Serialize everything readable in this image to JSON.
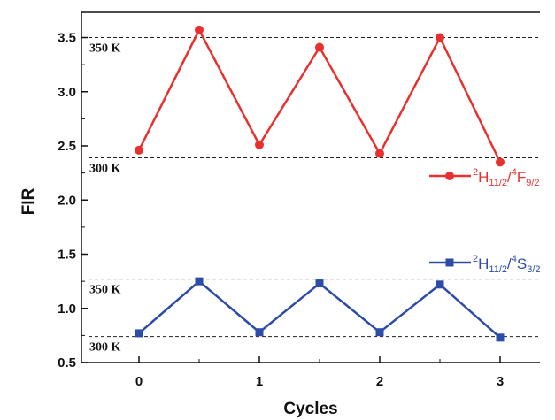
{
  "chart_data": {
    "type": "line",
    "xlabel": "Cycles",
    "ylabel": "FIR",
    "xlim": [
      -0.38,
      3.45
    ],
    "ylim": [
      0.5,
      3.65
    ],
    "xticks": [
      0,
      1,
      2,
      3
    ],
    "yticks": [
      0.5,
      1.0,
      1.5,
      2.0,
      2.5,
      3.0,
      3.5
    ],
    "xtick_labels": [
      "0",
      "1",
      "2",
      "3"
    ],
    "ytick_labels": [
      "0.5",
      "1.0",
      "1.5",
      "2.0",
      "2.5",
      "3.0",
      "3.5"
    ],
    "x": [
      0,
      0.5,
      1,
      1.5,
      2,
      2.5,
      3
    ],
    "series": [
      {
        "name_parts": [
          "2",
          "H",
          "11/2",
          "/",
          "4",
          "F",
          "9/2"
        ],
        "color": "#e8312f",
        "marker": "circle",
        "values": [
          2.46,
          3.57,
          2.51,
          3.41,
          2.43,
          3.5,
          2.35
        ]
      },
      {
        "name_parts": [
          "2",
          "H",
          "11/2",
          "/",
          "4",
          "S",
          "3/2"
        ],
        "color": "#2c4ca8",
        "marker": "square",
        "values": [
          0.77,
          1.25,
          0.78,
          1.23,
          0.78,
          1.22,
          0.73
        ]
      }
    ],
    "reference_lines": [
      {
        "label": "350 K",
        "y": 3.5
      },
      {
        "label": "300 K",
        "y": 2.39
      },
      {
        "label": "350 K",
        "y": 1.27
      },
      {
        "label": "300 K",
        "y": 0.74
      }
    ],
    "legend_position": "right",
    "grid": false
  }
}
